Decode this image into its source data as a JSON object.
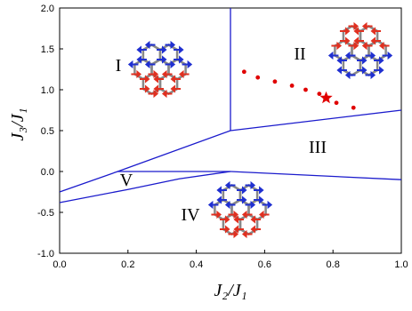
{
  "chart_data": {
    "type": "line",
    "xlabel": "J₂/J₁",
    "ylabel": "J₃/J₁",
    "xlim": [
      0,
      1
    ],
    "ylim": [
      -1,
      2
    ],
    "xticks": [
      {
        "value": 0,
        "label": "0.0"
      },
      {
        "value": 0.2,
        "label": "0.2"
      },
      {
        "value": 0.4,
        "label": "0.4"
      },
      {
        "value": 0.6,
        "label": "0.6"
      },
      {
        "value": 0.8,
        "label": "0.8"
      },
      {
        "value": 1,
        "label": "1.0"
      }
    ],
    "yticks": [
      {
        "value": -1,
        "label": "-1.0"
      },
      {
        "value": -0.5,
        "label": "-0.5"
      },
      {
        "value": 0,
        "label": "0.0"
      },
      {
        "value": 0.5,
        "label": "0.5"
      },
      {
        "value": 1,
        "label": "1.0"
      },
      {
        "value": 1.5,
        "label": "1.5"
      },
      {
        "value": 2,
        "label": "2.0"
      }
    ],
    "series": [
      {
        "color": "#1a1acc",
        "x": [
          0.5,
          0.5
        ],
        "y": [
          0.5,
          2
        ]
      },
      {
        "color": "#1a1acc",
        "x": [
          0,
          0.17,
          0.5
        ],
        "y": [
          -0.25,
          0,
          0.5
        ]
      },
      {
        "color": "#1a1acc",
        "x": [
          0.5,
          1
        ],
        "y": [
          0.5,
          0.75
        ]
      },
      {
        "color": "#1a1acc",
        "x": [
          0.17,
          0.5
        ],
        "y": [
          0,
          0
        ]
      },
      {
        "color": "#1a1acc",
        "x": [
          0.5,
          1
        ],
        "y": [
          0,
          -0.1
        ]
      },
      {
        "color": "#1a1acc",
        "x": [
          0,
          0.2,
          0.35,
          0.5
        ],
        "y": [
          -0.38,
          -0.22,
          -0.09,
          0
        ]
      }
    ],
    "points": {
      "color": "#e00000",
      "x": [
        0.54,
        0.58,
        0.63,
        0.68,
        0.72,
        0.76,
        0.81,
        0.86
      ],
      "y": [
        1.22,
        1.15,
        1.1,
        1.05,
        1.0,
        0.95,
        0.84,
        0.78
      ]
    },
    "star": {
      "color": "#e00000",
      "x": 0.78,
      "y": 0.9
    },
    "regions": [
      "I",
      "II",
      "III",
      "IV",
      "V"
    ]
  }
}
